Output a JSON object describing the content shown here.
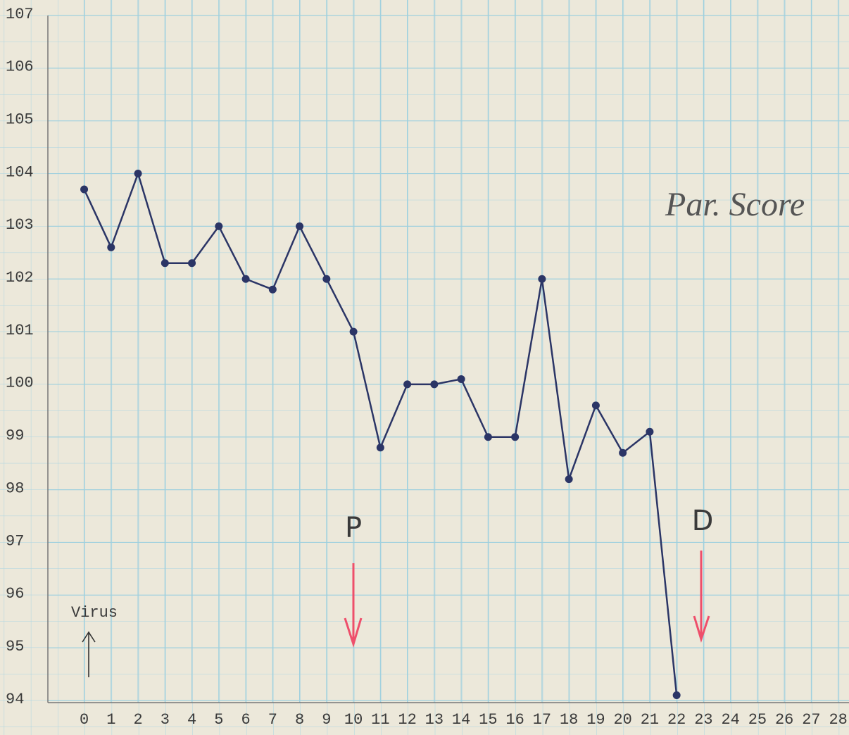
{
  "chart_data": {
    "type": "line",
    "x": [
      0,
      1,
      2,
      3,
      4,
      5,
      6,
      7,
      8,
      9,
      10,
      11,
      12,
      13,
      14,
      15,
      16,
      17,
      18,
      19,
      20,
      21,
      22
    ],
    "series": [
      {
        "color": "#2b3566",
        "values": [
          103.7,
          102.6,
          104.0,
          102.3,
          102.3,
          103.0,
          102.0,
          101.8,
          103.0,
          102.0,
          101.0,
          98.8,
          100.0,
          100.0,
          100.1,
          99.0,
          99.0,
          102.0,
          98.2,
          99.6,
          98.7,
          99.1,
          94.1
        ]
      }
    ],
    "xlim": [
      -1.4,
      28.4
    ],
    "xticks": [
      0,
      1,
      2,
      3,
      4,
      5,
      6,
      7,
      8,
      9,
      10,
      11,
      12,
      13,
      14,
      15,
      16,
      17,
      18,
      19,
      20,
      21,
      22,
      23,
      24,
      25,
      26,
      27,
      28
    ],
    "ylim": [
      94,
      107
    ],
    "yticks": [
      94,
      95,
      96,
      97,
      98,
      99,
      100,
      101,
      102,
      103,
      104,
      105,
      106,
      107
    ],
    "grid": true,
    "annotations": {
      "virus": "Virus",
      "p": "P",
      "d": "D",
      "score": "Par. Score"
    },
    "annotation_color": "#ee4f6b"
  }
}
